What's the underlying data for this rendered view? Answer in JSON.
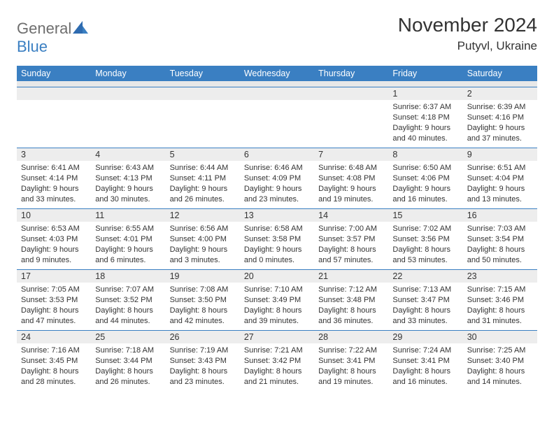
{
  "brand": {
    "general": "General",
    "blue": "Blue"
  },
  "title": "November 2024",
  "location": "Putyvl, Ukraine",
  "colors": {
    "accent": "#3a7fc2",
    "header_text": "#ffffff",
    "num_bg": "#ededed",
    "text": "#333333",
    "logo_grey": "#6e6e6e",
    "background": "#ffffff"
  },
  "dayHeaders": [
    "Sunday",
    "Monday",
    "Tuesday",
    "Wednesday",
    "Thursday",
    "Friday",
    "Saturday"
  ],
  "weeks": [
    [
      {
        "num": "",
        "sunrise": "",
        "sunset": "",
        "daylight": ""
      },
      {
        "num": "",
        "sunrise": "",
        "sunset": "",
        "daylight": ""
      },
      {
        "num": "",
        "sunrise": "",
        "sunset": "",
        "daylight": ""
      },
      {
        "num": "",
        "sunrise": "",
        "sunset": "",
        "daylight": ""
      },
      {
        "num": "",
        "sunrise": "",
        "sunset": "",
        "daylight": ""
      },
      {
        "num": "1",
        "sunrise": "Sunrise: 6:37 AM",
        "sunset": "Sunset: 4:18 PM",
        "daylight": "Daylight: 9 hours and 40 minutes."
      },
      {
        "num": "2",
        "sunrise": "Sunrise: 6:39 AM",
        "sunset": "Sunset: 4:16 PM",
        "daylight": "Daylight: 9 hours and 37 minutes."
      }
    ],
    [
      {
        "num": "3",
        "sunrise": "Sunrise: 6:41 AM",
        "sunset": "Sunset: 4:14 PM",
        "daylight": "Daylight: 9 hours and 33 minutes."
      },
      {
        "num": "4",
        "sunrise": "Sunrise: 6:43 AM",
        "sunset": "Sunset: 4:13 PM",
        "daylight": "Daylight: 9 hours and 30 minutes."
      },
      {
        "num": "5",
        "sunrise": "Sunrise: 6:44 AM",
        "sunset": "Sunset: 4:11 PM",
        "daylight": "Daylight: 9 hours and 26 minutes."
      },
      {
        "num": "6",
        "sunrise": "Sunrise: 6:46 AM",
        "sunset": "Sunset: 4:09 PM",
        "daylight": "Daylight: 9 hours and 23 minutes."
      },
      {
        "num": "7",
        "sunrise": "Sunrise: 6:48 AM",
        "sunset": "Sunset: 4:08 PM",
        "daylight": "Daylight: 9 hours and 19 minutes."
      },
      {
        "num": "8",
        "sunrise": "Sunrise: 6:50 AM",
        "sunset": "Sunset: 4:06 PM",
        "daylight": "Daylight: 9 hours and 16 minutes."
      },
      {
        "num": "9",
        "sunrise": "Sunrise: 6:51 AM",
        "sunset": "Sunset: 4:04 PM",
        "daylight": "Daylight: 9 hours and 13 minutes."
      }
    ],
    [
      {
        "num": "10",
        "sunrise": "Sunrise: 6:53 AM",
        "sunset": "Sunset: 4:03 PM",
        "daylight": "Daylight: 9 hours and 9 minutes."
      },
      {
        "num": "11",
        "sunrise": "Sunrise: 6:55 AM",
        "sunset": "Sunset: 4:01 PM",
        "daylight": "Daylight: 9 hours and 6 minutes."
      },
      {
        "num": "12",
        "sunrise": "Sunrise: 6:56 AM",
        "sunset": "Sunset: 4:00 PM",
        "daylight": "Daylight: 9 hours and 3 minutes."
      },
      {
        "num": "13",
        "sunrise": "Sunrise: 6:58 AM",
        "sunset": "Sunset: 3:58 PM",
        "daylight": "Daylight: 9 hours and 0 minutes."
      },
      {
        "num": "14",
        "sunrise": "Sunrise: 7:00 AM",
        "sunset": "Sunset: 3:57 PM",
        "daylight": "Daylight: 8 hours and 57 minutes."
      },
      {
        "num": "15",
        "sunrise": "Sunrise: 7:02 AM",
        "sunset": "Sunset: 3:56 PM",
        "daylight": "Daylight: 8 hours and 53 minutes."
      },
      {
        "num": "16",
        "sunrise": "Sunrise: 7:03 AM",
        "sunset": "Sunset: 3:54 PM",
        "daylight": "Daylight: 8 hours and 50 minutes."
      }
    ],
    [
      {
        "num": "17",
        "sunrise": "Sunrise: 7:05 AM",
        "sunset": "Sunset: 3:53 PM",
        "daylight": "Daylight: 8 hours and 47 minutes."
      },
      {
        "num": "18",
        "sunrise": "Sunrise: 7:07 AM",
        "sunset": "Sunset: 3:52 PM",
        "daylight": "Daylight: 8 hours and 44 minutes."
      },
      {
        "num": "19",
        "sunrise": "Sunrise: 7:08 AM",
        "sunset": "Sunset: 3:50 PM",
        "daylight": "Daylight: 8 hours and 42 minutes."
      },
      {
        "num": "20",
        "sunrise": "Sunrise: 7:10 AM",
        "sunset": "Sunset: 3:49 PM",
        "daylight": "Daylight: 8 hours and 39 minutes."
      },
      {
        "num": "21",
        "sunrise": "Sunrise: 7:12 AM",
        "sunset": "Sunset: 3:48 PM",
        "daylight": "Daylight: 8 hours and 36 minutes."
      },
      {
        "num": "22",
        "sunrise": "Sunrise: 7:13 AM",
        "sunset": "Sunset: 3:47 PM",
        "daylight": "Daylight: 8 hours and 33 minutes."
      },
      {
        "num": "23",
        "sunrise": "Sunrise: 7:15 AM",
        "sunset": "Sunset: 3:46 PM",
        "daylight": "Daylight: 8 hours and 31 minutes."
      }
    ],
    [
      {
        "num": "24",
        "sunrise": "Sunrise: 7:16 AM",
        "sunset": "Sunset: 3:45 PM",
        "daylight": "Daylight: 8 hours and 28 minutes."
      },
      {
        "num": "25",
        "sunrise": "Sunrise: 7:18 AM",
        "sunset": "Sunset: 3:44 PM",
        "daylight": "Daylight: 8 hours and 26 minutes."
      },
      {
        "num": "26",
        "sunrise": "Sunrise: 7:19 AM",
        "sunset": "Sunset: 3:43 PM",
        "daylight": "Daylight: 8 hours and 23 minutes."
      },
      {
        "num": "27",
        "sunrise": "Sunrise: 7:21 AM",
        "sunset": "Sunset: 3:42 PM",
        "daylight": "Daylight: 8 hours and 21 minutes."
      },
      {
        "num": "28",
        "sunrise": "Sunrise: 7:22 AM",
        "sunset": "Sunset: 3:41 PM",
        "daylight": "Daylight: 8 hours and 19 minutes."
      },
      {
        "num": "29",
        "sunrise": "Sunrise: 7:24 AM",
        "sunset": "Sunset: 3:41 PM",
        "daylight": "Daylight: 8 hours and 16 minutes."
      },
      {
        "num": "30",
        "sunrise": "Sunrise: 7:25 AM",
        "sunset": "Sunset: 3:40 PM",
        "daylight": "Daylight: 8 hours and 14 minutes."
      }
    ]
  ]
}
